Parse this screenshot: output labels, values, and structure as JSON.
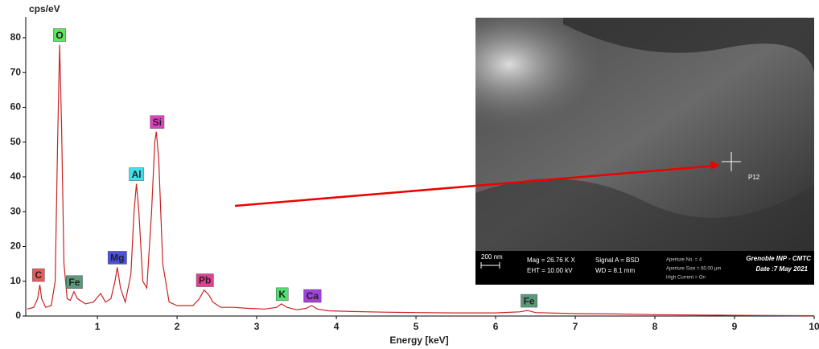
{
  "chart_data": {
    "type": "line",
    "ylabel": "cps/eV",
    "xlabel": "Energy [keV]",
    "xlim": [
      0.1,
      10
    ],
    "ylim": [
      0,
      86
    ],
    "xticks": [
      1,
      2,
      3,
      4,
      5,
      6,
      7,
      8,
      9,
      10
    ],
    "yticks": [
      0,
      10,
      20,
      30,
      40,
      50,
      60,
      70,
      80
    ],
    "color": "#cc2222",
    "x": [
      0.12,
      0.2,
      0.25,
      0.277,
      0.3,
      0.35,
      0.42,
      0.47,
      0.5,
      0.525,
      0.55,
      0.58,
      0.62,
      0.66,
      0.705,
      0.75,
      0.85,
      0.95,
      1.04,
      1.1,
      1.17,
      1.22,
      1.25,
      1.29,
      1.35,
      1.42,
      1.46,
      1.49,
      1.52,
      1.57,
      1.62,
      1.68,
      1.72,
      1.74,
      1.77,
      1.82,
      1.9,
      2.0,
      2.1,
      2.2,
      2.28,
      2.34,
      2.4,
      2.45,
      2.55,
      2.7,
      2.9,
      3.1,
      3.25,
      3.31,
      3.38,
      3.5,
      3.62,
      3.69,
      3.76,
      3.9,
      4.2,
      4.6,
      5.0,
      5.5,
      6.0,
      6.3,
      6.4,
      6.5,
      7.0,
      7.5,
      8.0,
      8.5,
      9.0,
      9.5,
      10
    ],
    "values": [
      2,
      2.5,
      5,
      9,
      5,
      2.5,
      3,
      10,
      50,
      78,
      55,
      15,
      5,
      4.5,
      7,
      5,
      3.5,
      4,
      6.5,
      4,
      5,
      10,
      14,
      8,
      4,
      12,
      30,
      38,
      30,
      10,
      8,
      30,
      50,
      53,
      45,
      15,
      4,
      3,
      3,
      3,
      5,
      7.5,
      6,
      4,
      2.5,
      2.5,
      2.2,
      2,
      2.5,
      3.5,
      2.5,
      1.8,
      2.2,
      3,
      2,
      1.5,
      1.3,
      1.1,
      1,
      0.9,
      0.9,
      1.2,
      1.6,
      1,
      0.7,
      0.6,
      0.4,
      0.3,
      0.2,
      0.15,
      0.1
    ],
    "annotations": [
      {
        "label": "C",
        "x": 0.26,
        "color": "#e85b5b"
      },
      {
        "label": "O",
        "x": 0.525,
        "color": "#5ee65e"
      },
      {
        "label": "Fe",
        "x": 0.71,
        "color": "#5a9a7a"
      },
      {
        "label": "Mg",
        "x": 1.25,
        "color": "#4a50e0"
      },
      {
        "label": "Al",
        "x": 1.49,
        "color": "#40e0e8"
      },
      {
        "label": "Si",
        "x": 1.75,
        "color": "#e040c0"
      },
      {
        "label": "Pb",
        "x": 2.35,
        "color": "#e04090"
      },
      {
        "label": "K",
        "x": 3.32,
        "color": "#50e070"
      },
      {
        "label": "Ca",
        "x": 3.7,
        "color": "#a040e0"
      },
      {
        "label": "Fe",
        "x": 6.42,
        "color": "#5a9a7a"
      }
    ]
  },
  "inset": {
    "scale_bar": "200 nm",
    "mag": "Mag =  26.76 K X",
    "eht": "EHT = 10.00 kV",
    "signal": "Signal A = BSD",
    "wd": "WD =  8.1 mm",
    "aperture_no": "Aperture No. = 4",
    "aperture_size": "Aperture Size = 60.00 µm",
    "high_current": "High Current = On",
    "institution": "Grenoble INP - CMTC",
    "date": "Date :7 May 2021",
    "point": "P12"
  }
}
